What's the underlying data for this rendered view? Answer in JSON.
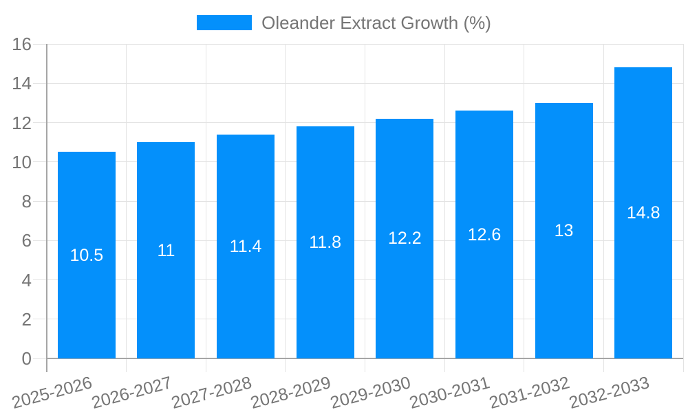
{
  "chart_data": {
    "type": "bar",
    "title": "",
    "categories": [
      "2025-2026",
      "2026-2027",
      "2027-2028",
      "2028-2029",
      "2029-2030",
      "2030-2031",
      "2031-2032",
      "2032-2033"
    ],
    "series": [
      {
        "name": "Oleander Extract Growth (%)",
        "values": [
          10.5,
          11,
          11.4,
          11.8,
          12.2,
          12.6,
          13,
          14.8
        ],
        "display_values": [
          "10.5",
          "11",
          "11.4",
          "11.8",
          "12.2",
          "12.6",
          "13",
          "14.8"
        ]
      }
    ],
    "xlabel": "",
    "ylabel": "",
    "ylim": [
      0,
      16
    ],
    "yticks": [
      0,
      2,
      4,
      6,
      8,
      10,
      12,
      14,
      16
    ],
    "grid": true,
    "legend_position": "top-center",
    "value_labels_position": "center-of-bar",
    "x_label_rotation_deg": -15,
    "colors": {
      "bar": "#0490FB",
      "grid": "#E3E3E3",
      "axis": "#A6A6A6",
      "tick_text": "#757575",
      "value_text": "#FFFFFF",
      "background": "#FFFFFF"
    }
  },
  "legend": {
    "label": "Oleander Extract Growth (%)"
  }
}
